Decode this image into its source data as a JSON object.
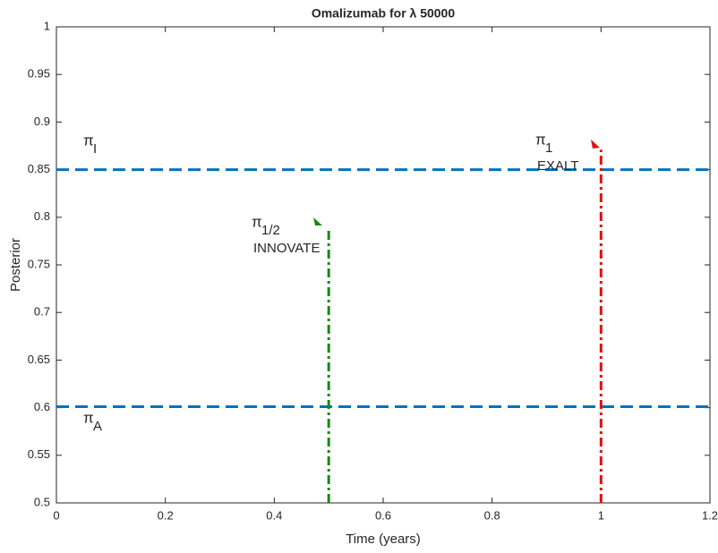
{
  "chart_data": {
    "type": "line",
    "title": "Omalizumab for λ 50000",
    "x_label": "Time (years)",
    "y_label": "Posterior",
    "xlim": [
      0,
      1.2
    ],
    "xticks": [
      0,
      0.2,
      0.4,
      0.6,
      0.8,
      1,
      1.2
    ],
    "ylim": [
      0.5,
      1
    ],
    "yticks": [
      0.5,
      0.55,
      0.6,
      0.65,
      0.7,
      0.75,
      0.8,
      0.85,
      0.9,
      0.95,
      1
    ],
    "series": [
      {
        "color": "#0072bd",
        "line_style": "dashed",
        "x": [
          0,
          1.2
        ],
        "values": [
          0.85,
          0.85
        ]
      },
      {
        "color": "#0072bd",
        "line_style": "dashed",
        "x": [
          0,
          1.2
        ],
        "values": [
          0.601,
          0.601
        ]
      },
      {
        "color": "#138a13",
        "line_style": "dashdot",
        "x": [
          0.5,
          0.5
        ],
        "values": [
          0.5,
          0.789
        ]
      },
      {
        "color": "#e01010",
        "line_style": "dashdot",
        "x": [
          1,
          1
        ],
        "values": [
          0.5,
          0.871
        ]
      }
    ],
    "annotations": [
      {
        "symbol": "π",
        "subscript": "I"
      },
      {
        "symbol": "π",
        "subscript": "A"
      },
      {
        "symbol": "π",
        "subscript": "1/2",
        "label": "INNOVATE"
      },
      {
        "symbol": "π",
        "subscript": "1",
        "label": "EXALT"
      }
    ]
  }
}
